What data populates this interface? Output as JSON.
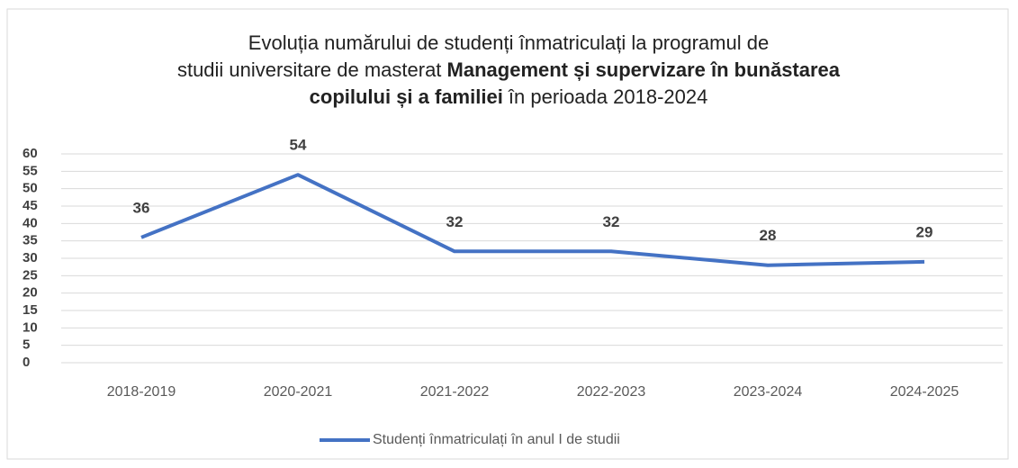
{
  "chart_data": {
    "type": "line",
    "title": [
      [
        {
          "text": "Evoluția numărului de studenți înmatriculați la programul de",
          "bold": false
        }
      ],
      [
        {
          "text": "studii universitare de masterat ",
          "bold": false
        },
        {
          "text": "Management și supervizare în bunăstarea",
          "bold": true
        }
      ],
      [
        {
          "text": "copilului și a familiei",
          "bold": true
        },
        {
          "text": " în perioada 2018-2024",
          "bold": false
        }
      ]
    ],
    "categories": [
      "2018-2019",
      "2020-2021",
      "2021-2022",
      "2022-2023",
      "2023-2024",
      "2024-2025"
    ],
    "series": [
      {
        "name": "Studenți înmatriculați în anul I de studii",
        "color": "#4472c4",
        "values": [
          36,
          54,
          32,
          32,
          28,
          29
        ]
      }
    ],
    "ylim": [
      0,
      60
    ],
    "yticks": [
      0,
      5,
      10,
      15,
      20,
      25,
      30,
      35,
      40,
      45,
      50,
      55,
      60
    ],
    "grid": true,
    "data_labels": true,
    "legend": "bottom"
  }
}
